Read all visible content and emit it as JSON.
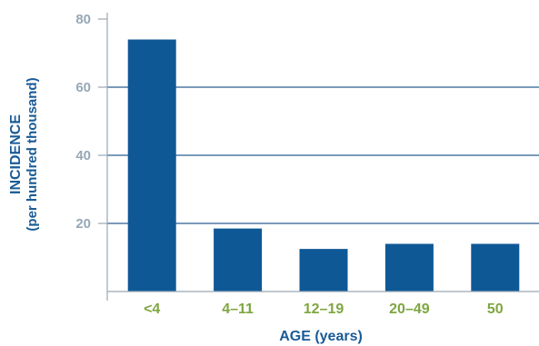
{
  "chart_data": {
    "type": "bar",
    "categories": [
      "<4",
      "4–11",
      "12–19",
      "20–49",
      "50"
    ],
    "values": [
      74,
      18.5,
      12.5,
      14,
      14
    ],
    "xlabel": "AGE (years)",
    "ylabel": "INCIDENCE",
    "ylabel_sub": "(per hundred thousand)",
    "ylim": [
      0,
      80
    ],
    "yticks": [
      20,
      40,
      60,
      80
    ],
    "grid": true,
    "colors": {
      "bar": "#0f5896",
      "grid": "#2a5f91",
      "ytick": "#98a8b5",
      "xtick": "#7ea640",
      "axis_title": "#1a5b96",
      "axis": "#9aa8b4"
    }
  }
}
